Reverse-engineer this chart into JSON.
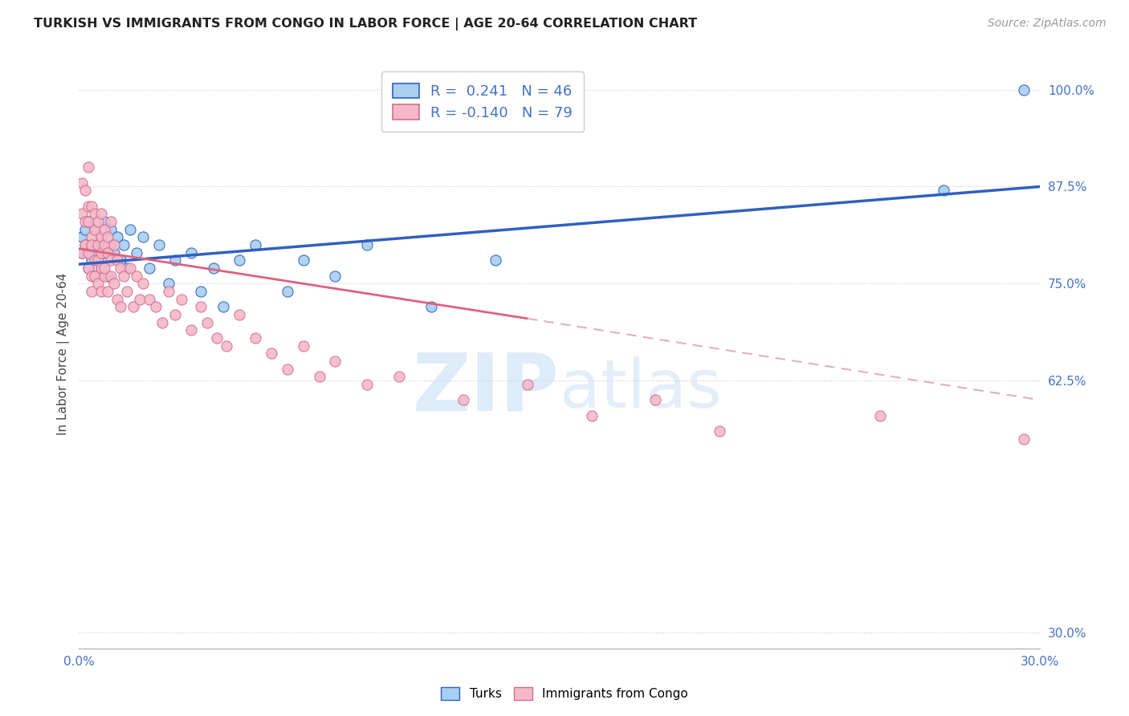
{
  "title": "TURKISH VS IMMIGRANTS FROM CONGO IN LABOR FORCE | AGE 20-64 CORRELATION CHART",
  "source": "Source: ZipAtlas.com",
  "ylabel": "In Labor Force | Age 20-64",
  "xlim": [
    0.0,
    0.3
  ],
  "ylim": [
    0.28,
    1.04
  ],
  "xticks": [
    0.0,
    0.05,
    0.1,
    0.15,
    0.2,
    0.25,
    0.3
  ],
  "yticks": [
    0.3,
    0.625,
    0.75,
    0.875,
    1.0
  ],
  "ytick_labels": [
    "30.0%",
    "62.5%",
    "75.0%",
    "87.5%",
    "100.0%"
  ],
  "r_turks": 0.241,
  "n_turks": 46,
  "r_congo": -0.14,
  "n_congo": 79,
  "color_turks": "#a8cff0",
  "color_congo": "#f5b8c8",
  "color_trend_turks": "#3060c0",
  "color_trend_congo": "#e06080",
  "watermark_color": "#c8dff5",
  "turks_x": [
    0.001,
    0.001,
    0.002,
    0.002,
    0.003,
    0.003,
    0.004,
    0.004,
    0.005,
    0.005,
    0.005,
    0.006,
    0.006,
    0.007,
    0.007,
    0.008,
    0.008,
    0.009,
    0.01,
    0.01,
    0.011,
    0.012,
    0.013,
    0.014,
    0.015,
    0.016,
    0.018,
    0.02,
    0.022,
    0.025,
    0.028,
    0.03,
    0.035,
    0.038,
    0.042,
    0.045,
    0.05,
    0.055,
    0.065,
    0.07,
    0.08,
    0.09,
    0.11,
    0.13,
    0.27,
    0.295
  ],
  "turks_y": [
    0.79,
    0.81,
    0.8,
    0.82,
    0.77,
    0.83,
    0.78,
    0.8,
    0.76,
    0.79,
    0.82,
    0.78,
    0.8,
    0.77,
    0.81,
    0.79,
    0.83,
    0.76,
    0.8,
    0.82,
    0.79,
    0.81,
    0.78,
    0.8,
    0.77,
    0.82,
    0.79,
    0.81,
    0.77,
    0.8,
    0.75,
    0.78,
    0.79,
    0.74,
    0.77,
    0.72,
    0.78,
    0.8,
    0.74,
    0.78,
    0.76,
    0.8,
    0.72,
    0.78,
    0.87,
    1.0
  ],
  "congo_x": [
    0.001,
    0.001,
    0.001,
    0.002,
    0.002,
    0.002,
    0.003,
    0.003,
    0.003,
    0.003,
    0.003,
    0.004,
    0.004,
    0.004,
    0.004,
    0.004,
    0.005,
    0.005,
    0.005,
    0.005,
    0.006,
    0.006,
    0.006,
    0.006,
    0.007,
    0.007,
    0.007,
    0.007,
    0.007,
    0.008,
    0.008,
    0.008,
    0.008,
    0.009,
    0.009,
    0.009,
    0.01,
    0.01,
    0.01,
    0.011,
    0.011,
    0.012,
    0.012,
    0.013,
    0.013,
    0.014,
    0.015,
    0.016,
    0.017,
    0.018,
    0.019,
    0.02,
    0.022,
    0.024,
    0.026,
    0.028,
    0.03,
    0.032,
    0.035,
    0.038,
    0.04,
    0.043,
    0.046,
    0.05,
    0.055,
    0.06,
    0.065,
    0.07,
    0.075,
    0.08,
    0.09,
    0.1,
    0.12,
    0.14,
    0.16,
    0.18,
    0.2,
    0.25,
    0.295
  ],
  "congo_y": [
    0.88,
    0.84,
    0.79,
    0.83,
    0.87,
    0.8,
    0.85,
    0.79,
    0.83,
    0.77,
    0.9,
    0.81,
    0.76,
    0.85,
    0.8,
    0.74,
    0.82,
    0.78,
    0.84,
    0.76,
    0.8,
    0.75,
    0.83,
    0.78,
    0.81,
    0.77,
    0.84,
    0.79,
    0.74,
    0.8,
    0.76,
    0.82,
    0.77,
    0.79,
    0.74,
    0.81,
    0.78,
    0.83,
    0.76,
    0.8,
    0.75,
    0.78,
    0.73,
    0.77,
    0.72,
    0.76,
    0.74,
    0.77,
    0.72,
    0.76,
    0.73,
    0.75,
    0.73,
    0.72,
    0.7,
    0.74,
    0.71,
    0.73,
    0.69,
    0.72,
    0.7,
    0.68,
    0.67,
    0.71,
    0.68,
    0.66,
    0.64,
    0.67,
    0.63,
    0.65,
    0.62,
    0.63,
    0.6,
    0.62,
    0.58,
    0.6,
    0.56,
    0.58,
    0.55
  ],
  "trend_turks_x0": 0.0,
  "trend_turks_y0": 0.775,
  "trend_turks_x1": 0.3,
  "trend_turks_y1": 0.875,
  "trend_congo_solid_x0": 0.0,
  "trend_congo_solid_y0": 0.795,
  "trend_congo_solid_x1": 0.14,
  "trend_congo_solid_y1": 0.705,
  "trend_congo_dash_x0": 0.14,
  "trend_congo_dash_y0": 0.705,
  "trend_congo_dash_x1": 0.3,
  "trend_congo_dash_y1": 0.6
}
